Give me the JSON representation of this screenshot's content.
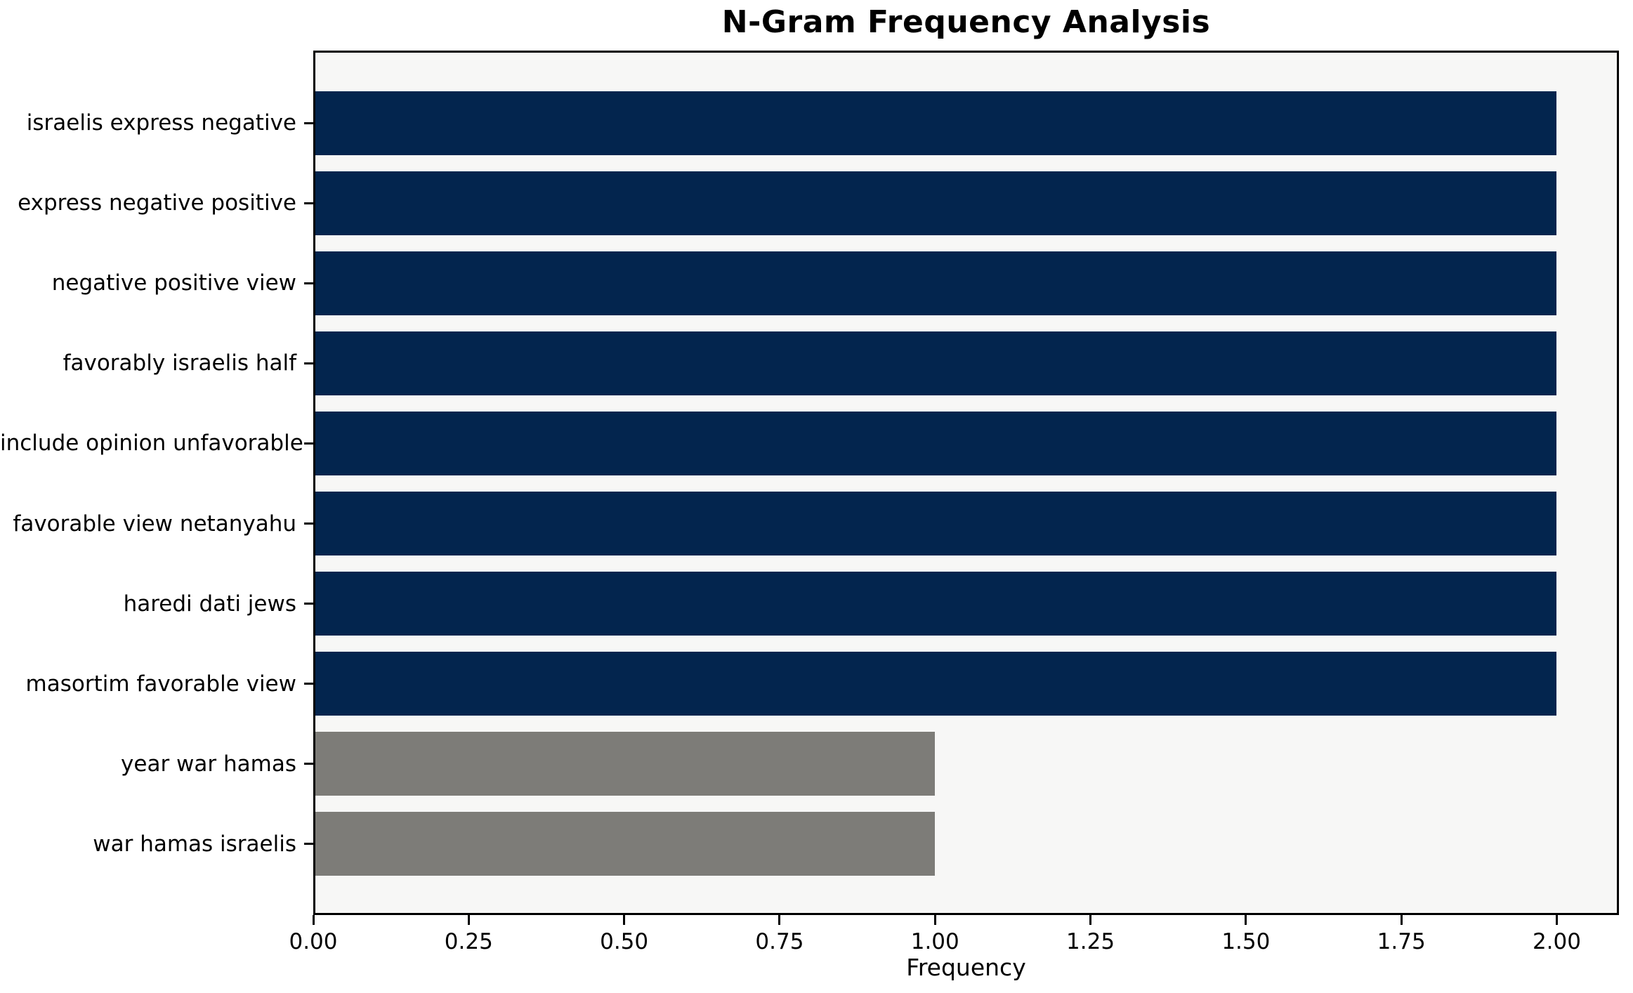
{
  "chart_data": {
    "type": "bar",
    "orientation": "horizontal",
    "title": "N-Gram Frequency Analysis",
    "xlabel": "Frequency",
    "ylabel": "",
    "categories": [
      "israelis express negative",
      "express negative positive",
      "negative positive view",
      "favorably israelis half",
      "include opinion unfavorable",
      "favorable view netanyahu",
      "haredi dati jews",
      "masortim favorable view",
      "year war hamas",
      "war hamas israelis"
    ],
    "values": [
      2,
      2,
      2,
      2,
      2,
      2,
      2,
      2,
      1,
      1
    ],
    "bar_colors": [
      "#03254e",
      "#03254e",
      "#03254e",
      "#03254e",
      "#03254e",
      "#03254e",
      "#03254e",
      "#03254e",
      "#7d7c78",
      "#7d7c78"
    ],
    "xlim": [
      0,
      2.1
    ],
    "xtick_labels": [
      "0.00",
      "0.25",
      "0.50",
      "0.75",
      "1.00",
      "1.25",
      "1.50",
      "1.75",
      "2.00"
    ],
    "xtick_values": [
      0,
      0.25,
      0.5,
      0.75,
      1.0,
      1.25,
      1.5,
      1.75,
      2.0
    ],
    "grid": false,
    "legend": null,
    "colors": {
      "bar_high": "#03254e",
      "bar_low": "#7d7c78",
      "plot_background": "#f7f7f6",
      "figure_background": "#ffffff",
      "spine": "#000000",
      "text": "#000000"
    }
  }
}
